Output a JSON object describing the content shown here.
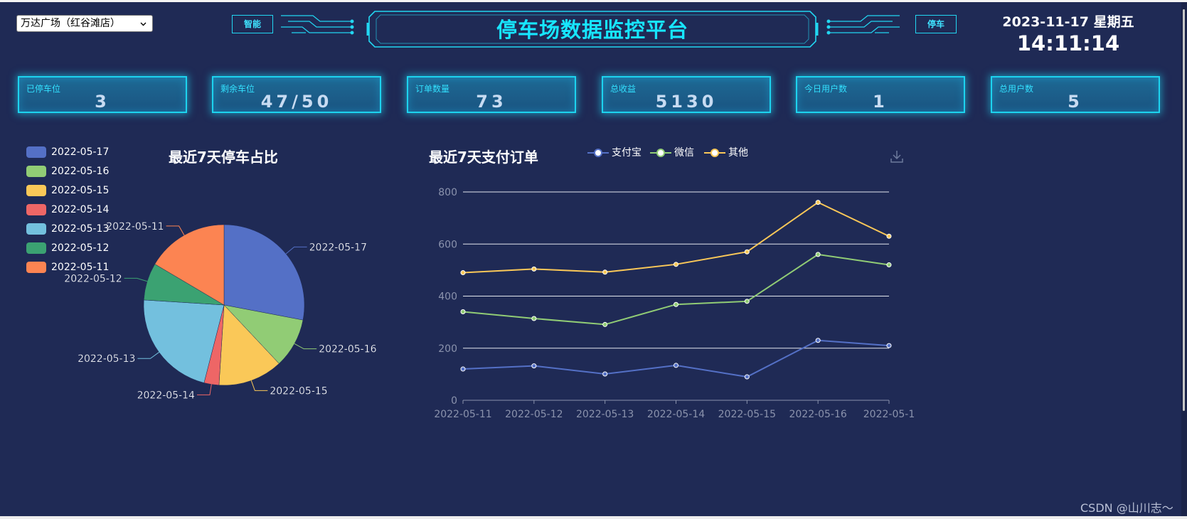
{
  "header": {
    "location_select": "万达广场（红谷滩店）",
    "tag_left": "智能",
    "tag_right": "停车",
    "title": "停车场数据监控平台",
    "date": "2023-11-17 星期五",
    "time": "14:11:14"
  },
  "stats": [
    {
      "label": "已停车位",
      "value": "3"
    },
    {
      "label": "剩余车位",
      "value": "47/50"
    },
    {
      "label": "订单数量",
      "value": "73"
    },
    {
      "label": "总收益",
      "value": "5130"
    },
    {
      "label": "今日用户数",
      "value": "1"
    },
    {
      "label": "总用户数",
      "value": "5"
    }
  ],
  "pie": {
    "title": "最近7天停车占比"
  },
  "line": {
    "title": "最近7天支付订单",
    "download_icon": "download-icon"
  },
  "colors": {
    "background": "#1f2a55",
    "accent": "#17e6ff",
    "card_border": "#1dd3ef"
  },
  "watermark": "CSDN @山川志～",
  "chart_data": [
    {
      "type": "pie",
      "title": "最近7天停车占比",
      "legend_position": "top-left",
      "categories": [
        "2022-05-17",
        "2022-05-16",
        "2022-05-15",
        "2022-05-14",
        "2022-05-13",
        "2022-05-12",
        "2022-05-11"
      ],
      "values": [
        28,
        10,
        13,
        3,
        22,
        7.5,
        16.5
      ],
      "colors": [
        "#5470c6",
        "#91cc75",
        "#fac858",
        "#ee6666",
        "#73c0de",
        "#3ba272",
        "#fc8452"
      ]
    },
    {
      "type": "line",
      "title": "最近7天支付订单",
      "legend_position": "top",
      "categories": [
        "2022-05-11",
        "2022-05-12",
        "2022-05-13",
        "2022-05-14",
        "2022-05-15",
        "2022-05-16",
        "2022-05-1"
      ],
      "ylim": [
        0,
        800
      ],
      "yticks": [
        0,
        200,
        400,
        600,
        800
      ],
      "grid": true,
      "series": [
        {
          "name": "支付宝",
          "color": "#5470c6",
          "values": [
            120,
            132,
            101,
            134,
            90,
            230,
            210
          ]
        },
        {
          "name": "微信",
          "color": "#91cc75",
          "values": [
            340,
            314,
            291,
            368,
            380,
            560,
            520
          ]
        },
        {
          "name": "其他",
          "color": "#fac858",
          "values": [
            490,
            504,
            492,
            522,
            570,
            760,
            630
          ]
        }
      ]
    }
  ]
}
